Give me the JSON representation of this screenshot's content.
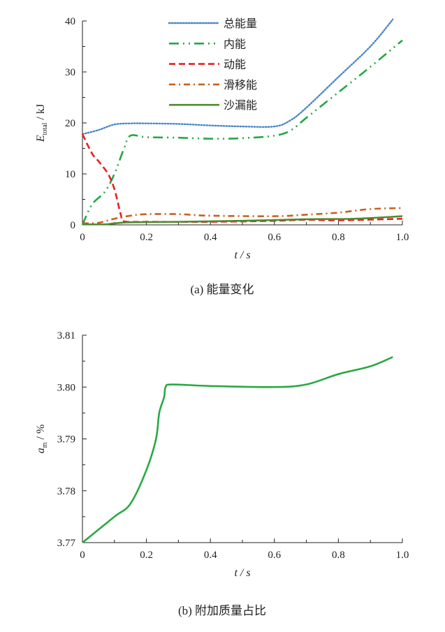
{
  "chart_data": [
    {
      "type": "line",
      "caption": "(a)  能量变化",
      "xlabel": "t / s",
      "ylabel_main": "E",
      "ylabel_sub": "total",
      "ylabel_unit": " / kJ",
      "xlim": [
        0,
        1.0
      ],
      "ylim": [
        0,
        40
      ],
      "xticks": [
        "0",
        "0.2",
        "0.4",
        "0.6",
        "0.8",
        "1.0"
      ],
      "yticks": [
        "0",
        "10",
        "20",
        "30",
        "40"
      ],
      "legend_position": "top-center",
      "grid": false,
      "series": [
        {
          "name": "总能量",
          "color": "#4a86c8",
          "style": "dotted",
          "x": [
            0,
            0.05,
            0.1,
            0.15,
            0.2,
            0.3,
            0.4,
            0.5,
            0.6,
            0.65,
            0.7,
            0.8,
            0.9,
            0.97
          ],
          "y": [
            17.8,
            18.6,
            19.7,
            19.9,
            19.9,
            19.8,
            19.5,
            19.3,
            19.3,
            20.5,
            23,
            29,
            35,
            40.3
          ]
        },
        {
          "name": "内能",
          "color": "#22a845",
          "style": "dash-dot-dot",
          "x": [
            0,
            0.03,
            0.07,
            0.1,
            0.13,
            0.15,
            0.2,
            0.3,
            0.4,
            0.5,
            0.6,
            0.65,
            0.7,
            0.8,
            0.9,
            1.0
          ],
          "y": [
            0,
            4,
            6.5,
            10,
            15,
            17.5,
            17.2,
            17.1,
            16.9,
            17,
            17.5,
            18.5,
            21,
            26,
            31,
            36.2
          ]
        },
        {
          "name": "动能",
          "color": "#e8201c",
          "style": "dashed",
          "x": [
            0,
            0.03,
            0.05,
            0.08,
            0.1,
            0.12,
            0.13,
            0.2,
            0.4,
            0.6,
            0.7,
            0.8,
            1.0
          ],
          "y": [
            17.8,
            14,
            12.5,
            10,
            7,
            2,
            0.7,
            0.6,
            0.6,
            0.8,
            1.0,
            0.9,
            1.2
          ]
        },
        {
          "name": "滑移能",
          "color": "#c8601c",
          "style": "dash-dot",
          "x": [
            0,
            0.05,
            0.1,
            0.15,
            0.2,
            0.3,
            0.4,
            0.6,
            0.7,
            0.8,
            0.9,
            1.0
          ],
          "y": [
            0.3,
            0.4,
            1.2,
            1.8,
            2.1,
            2.1,
            1.8,
            1.7,
            2.0,
            2.4,
            3.1,
            3.3
          ]
        },
        {
          "name": "沙漏能",
          "color": "#4e8a2e",
          "style": "solid",
          "x": [
            0,
            0.07,
            0.1,
            0.15,
            0.3,
            0.5,
            0.7,
            0.85,
            1.0
          ],
          "y": [
            0.1,
            0.1,
            0.3,
            0.5,
            0.6,
            0.8,
            1.1,
            1.2,
            1.7
          ]
        }
      ]
    },
    {
      "type": "line",
      "caption": "(b)  附加质量占比",
      "xlabel": "t / s",
      "ylabel_main": "a",
      "ylabel_sub": "m",
      "ylabel_unit": " / %",
      "xlim": [
        0,
        1.0
      ],
      "ylim": [
        3.77,
        3.81
      ],
      "xticks": [
        "0",
        "0.2",
        "0.4",
        "0.6",
        "0.8",
        "1.0"
      ],
      "yticks": [
        "3.77",
        "3.78",
        "3.79",
        "3.80",
        "3.81"
      ],
      "grid": false,
      "series": [
        {
          "color": "#2aa845",
          "style": "solid",
          "x": [
            0,
            0.1,
            0.15,
            0.2,
            0.23,
            0.24,
            0.255,
            0.26,
            0.28,
            0.4,
            0.6,
            0.7,
            0.8,
            0.9,
            0.97
          ],
          "y": [
            3.77,
            3.775,
            3.7775,
            3.784,
            3.79,
            3.795,
            3.798,
            3.8,
            3.8005,
            3.8002,
            3.8,
            3.8005,
            3.8025,
            3.804,
            3.8058
          ]
        }
      ]
    }
  ]
}
